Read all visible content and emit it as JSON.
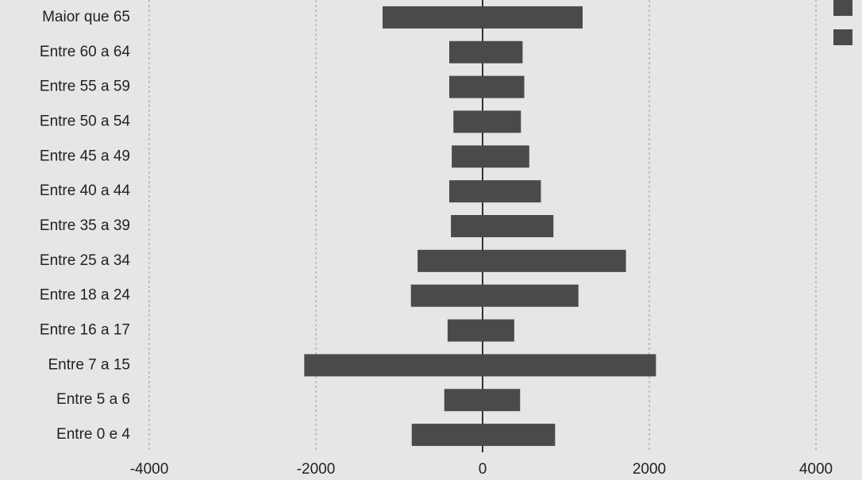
{
  "chart_data": {
    "type": "bar",
    "orientation": "horizontal",
    "stacked": false,
    "categories": [
      "Maior que 65",
      "Entre 60 a 64",
      "Entre 55 a 59",
      "Entre 50 a 54",
      "Entre 45 a 49",
      "Entre 40 a 44",
      "Entre 35 a 39",
      "Entre 25 a 34",
      "Entre 18 a 24",
      "Entre 16 a 17",
      "Entre 7 a 15",
      "Entre 5 a 6",
      "Entre 0 e 4"
    ],
    "series": [
      {
        "color": "#4a4a4a",
        "values": [
          -1200,
          -400,
          -400,
          -350,
          -370,
          -400,
          -380,
          -780,
          -860,
          -420,
          -2140,
          -460,
          -850
        ]
      },
      {
        "color": "#4a4a4a",
        "values": [
          1200,
          480,
          500,
          460,
          560,
          700,
          850,
          1720,
          1150,
          380,
          2080,
          450,
          870
        ]
      }
    ],
    "xlim": [
      -4000,
      4000
    ],
    "xticks": [
      -4000,
      -2000,
      0,
      2000,
      4000
    ],
    "grid": true,
    "legend": "top-right"
  }
}
